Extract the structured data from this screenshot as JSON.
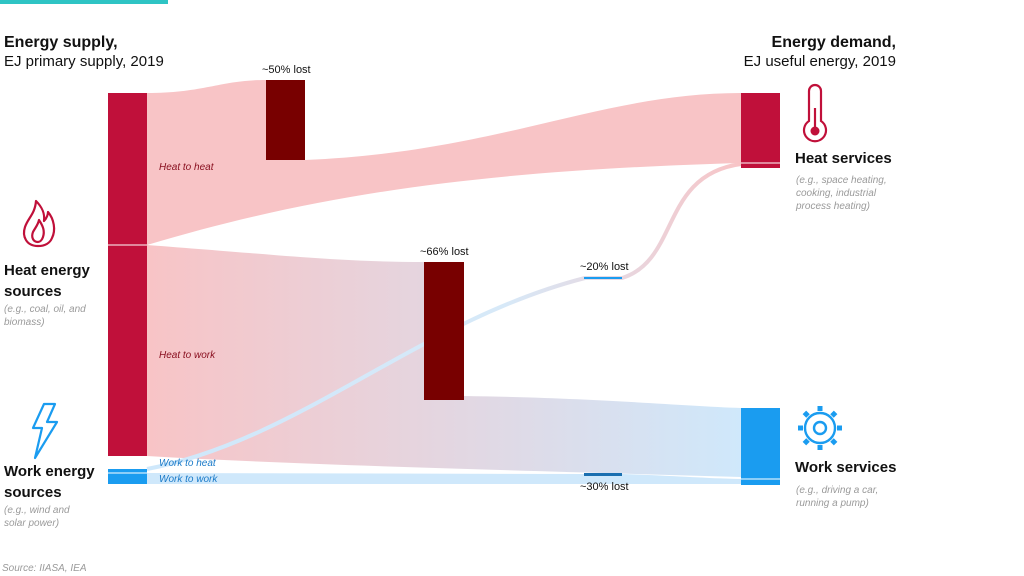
{
  "supply_header": {
    "line1": "Energy supply,",
    "line2": "EJ primary supply, 2019"
  },
  "demand_header": {
    "line1": "Energy demand,",
    "line2": "EJ useful energy, 2019"
  },
  "sources": {
    "heat": {
      "title_line1": "Heat energy",
      "title_line2": "sources",
      "note_line1": "(e.g., coal, oil, and",
      "note_line2": "biomass)",
      "icon": "flame-icon"
    },
    "work": {
      "title_line1": "Work energy",
      "title_line2": "sources",
      "note_line1": "(e.g., wind and",
      "note_line2": "solar power)",
      "icon": "lightning-icon"
    }
  },
  "services": {
    "heat": {
      "title": "Heat services",
      "note_line1": "(e.g., space heating,",
      "note_line2": "cooking, industrial",
      "note_line3": "process heating)",
      "icon": "thermometer-icon"
    },
    "work": {
      "title": "Work services",
      "note_line1": "(e.g., driving a car,",
      "note_line2": "running a pump)",
      "icon": "gear-icon"
    }
  },
  "flows": {
    "heat_to_heat": "Heat to heat",
    "heat_to_work": "Heat to work",
    "work_to_heat": "Work to heat",
    "work_to_work": "Work to work"
  },
  "losses": {
    "heat_to_heat": "~50% lost",
    "heat_to_work": "~66% lost",
    "work_to_heat": "~20% lost",
    "work_to_work": "~30% lost"
  },
  "source_note": "Source: IIASA, IEA",
  "colors": {
    "heat_node": "#c0103a",
    "loss_node": "#780000",
    "work_node": "#1a9cf0",
    "heat_flow": "#f8c4c6",
    "work_flow": "#cfe8fb",
    "heat_label": "#8a1020",
    "work_label": "#1a7ac8",
    "accent": "#2ec4c4"
  }
}
